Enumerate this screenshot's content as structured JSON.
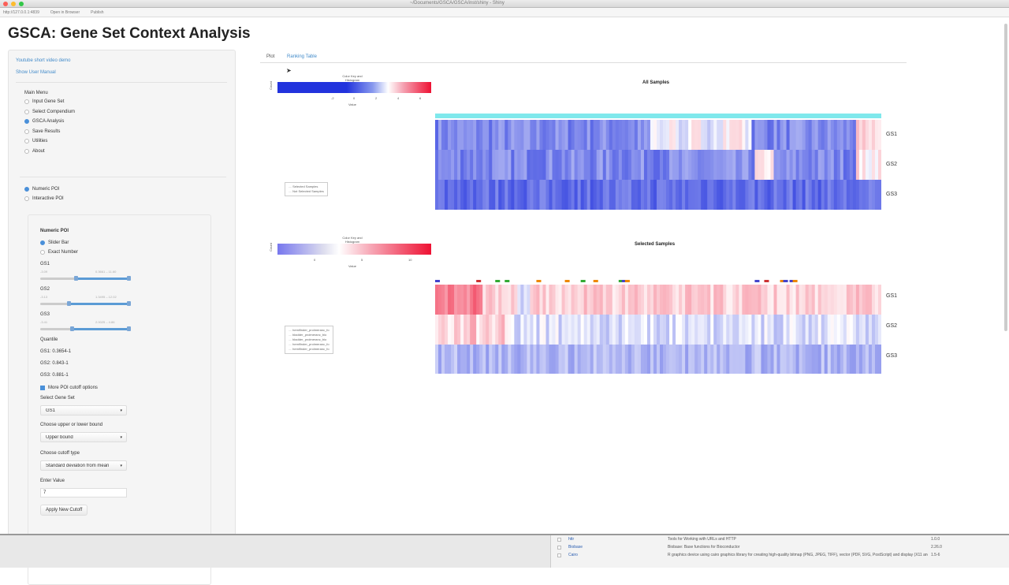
{
  "window": {
    "title": "~/Documents/GSCA/GSCA/inst/shiny - Shiny",
    "toolbar": [
      "http://127.0.0.1:4839",
      "Open in Browser",
      "Publish"
    ]
  },
  "app": {
    "title": "GSCA: Gene Set Context Analysis"
  },
  "sidebar": {
    "links": [
      "Youtube short video demo",
      "Show User Manual"
    ],
    "main_menu_label": "Main Menu",
    "main_menu": [
      {
        "label": "Input Gene Set",
        "selected": false
      },
      {
        "label": "Select Compendium",
        "selected": false
      },
      {
        "label": "GSCA Analysis",
        "selected": true
      },
      {
        "label": "Save Results",
        "selected": false
      },
      {
        "label": "Utilities",
        "selected": false
      },
      {
        "label": "About",
        "selected": false
      }
    ],
    "poi_modes": [
      {
        "label": "Numeric POI",
        "selected": true
      },
      {
        "label": "Interactive POI",
        "selected": false
      }
    ],
    "numeric_poi": {
      "title": "Numeric POI",
      "input_modes": [
        {
          "label": "Slider Bar",
          "selected": true
        },
        {
          "label": "Exact Number",
          "selected": false
        }
      ],
      "sliders": [
        {
          "label": "GS1",
          "min": "-3.09",
          "range": "0.3661 – 11.60",
          "low_fraction": 0.4,
          "high_fraction": 1.0
        },
        {
          "label": "GS2",
          "min": "-3.13",
          "range": "1.3495 – 12.02",
          "low_fraction": 0.32,
          "high_fraction": 1.0
        },
        {
          "label": "GS3",
          "min": "-3.41",
          "range": "2.0025 – 4.86",
          "low_fraction": 0.35,
          "high_fraction": 1.0
        }
      ],
      "quantile_label": "Quantile",
      "quantiles": [
        "GS1: 0.3654-1",
        "GS2: 0.843-1",
        "GS3: 0.881-1"
      ],
      "more_options": {
        "label": "More POI cutoff options",
        "checked": true
      },
      "select_gene_set": {
        "label": "Select Gene Set",
        "value": "GS1"
      },
      "bound": {
        "label": "Choose upper or lower bound",
        "value": "Upper bound"
      },
      "cutoff_type": {
        "label": "Choose cutoff type",
        "value": "Standard deviation from mean"
      },
      "enter_value": {
        "label": "Enter Value",
        "value": "7"
      },
      "apply_button": "Apply New Cutoff"
    }
  },
  "main": {
    "tabs": [
      {
        "label": "Plot",
        "active": true
      },
      {
        "label": "Ranking Table",
        "active": false
      }
    ],
    "plots": [
      {
        "title": "All Samples",
        "key_title": "Color Key and Histogram",
        "key_xlabel": "Value",
        "key_ylabel": "Count",
        "key_ticks": [
          "-2",
          "0",
          "2",
          "4",
          "6"
        ],
        "legend": [
          "Selected Samples",
          "Not Selected Samples"
        ],
        "rows": [
          "GS1",
          "GS2",
          "GS3"
        ],
        "top_bar_color": "#7fe8ec"
      },
      {
        "title": "Selected Samples",
        "key_title": "Color Key and Histogram",
        "key_xlabel": "Value",
        "key_ylabel": "Count",
        "key_ticks": [
          "0",
          "5",
          "10"
        ],
        "legend": [
          "hemifinder_prolmeranc_fo",
          "bladder_prolmeranc_bio",
          "bladder_prolmeranc_bio",
          "hemifinder_prolmeranc_fo",
          "hemifinder_prolmeranc_fo"
        ],
        "rows": [
          "GS1",
          "GS2",
          "GS3"
        ]
      }
    ]
  },
  "packages": [
    {
      "name": "httr",
      "desc": "Tools for Working with URLs and HTTP",
      "version": "1.0.0"
    },
    {
      "name": "Biobase",
      "desc": "Biobase: Base functions for Bioconductor",
      "version": "2.26.0"
    },
    {
      "name": "Cairo",
      "desc": "R graphics device using cairo graphics library for creating high-quality bitmap (PNG, JPEG, TIFF), vector (PDF, SVG, PostScript) and display (X11 and Win32) output",
      "version": "1.5-6"
    }
  ],
  "colors": {
    "low": "#2233dd",
    "mid": "#ffffff",
    "high": "#ee1133",
    "link": "#428bca",
    "accent": "#4a90d9"
  }
}
